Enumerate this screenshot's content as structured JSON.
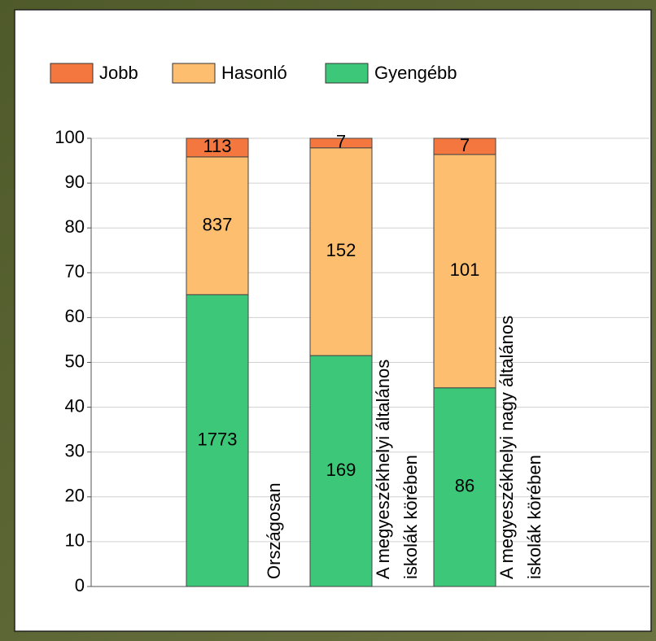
{
  "chart_data": {
    "type": "bar",
    "stacking": "percent",
    "categories": [
      "Országosan",
      "A megyeszékhelyi általános\niskolák körében",
      "A megyeszékhelyi nagy általános\niskolák körében"
    ],
    "series": [
      {
        "name": "Jobb",
        "color": "#f4773f",
        "values": [
          113,
          7,
          7
        ]
      },
      {
        "name": "Hasonló",
        "color": "#fdbf6f",
        "values": [
          837,
          152,
          101
        ]
      },
      {
        "name": "Gyengébb",
        "color": "#3cc878",
        "values": [
          1773,
          169,
          86
        ]
      }
    ],
    "ylim": [
      0,
      100
    ],
    "yticks": [
      0,
      10,
      20,
      30,
      40,
      50,
      60,
      70,
      80,
      90,
      100
    ],
    "grid": true,
    "legend": "top"
  }
}
